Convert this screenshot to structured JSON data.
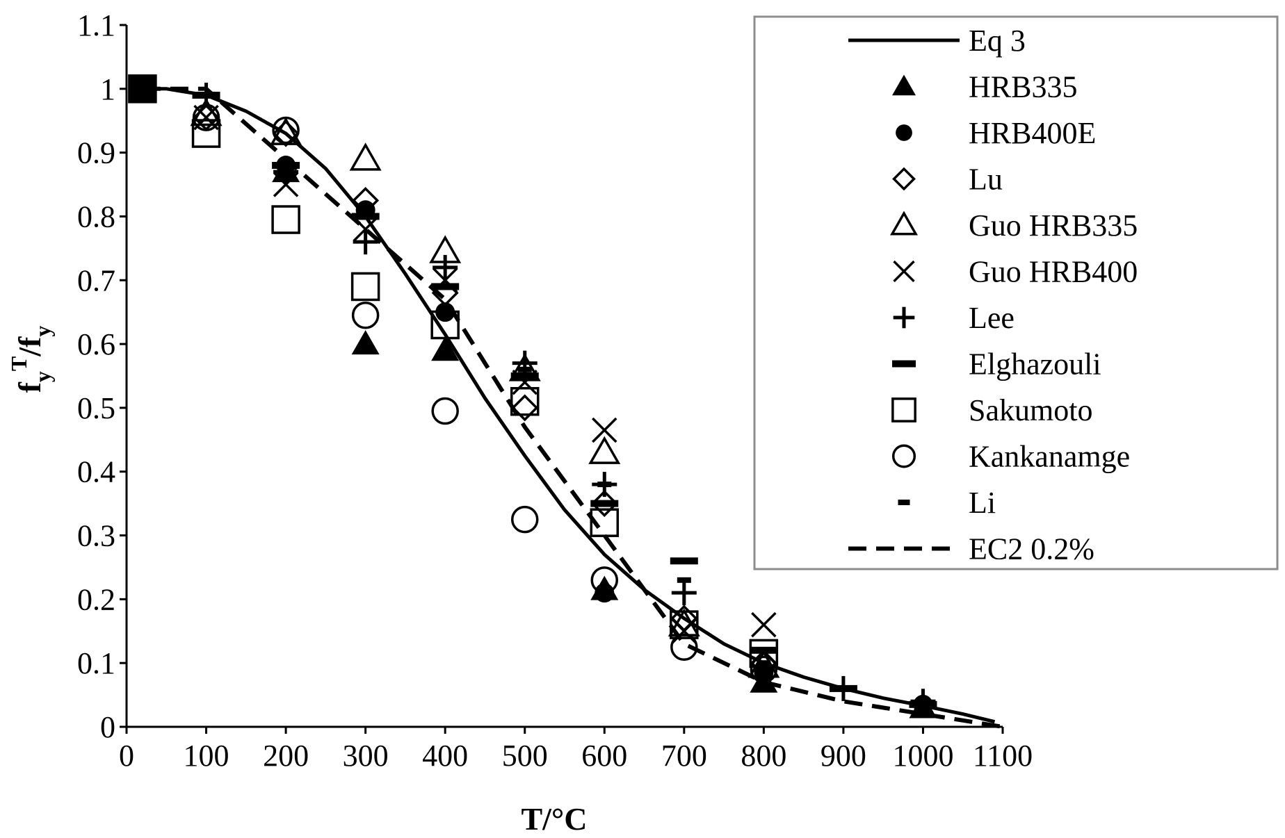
{
  "chart_data": {
    "type": "scatter",
    "title": "",
    "xlabel": "T/°C",
    "ylabel_parts": {
      "main": "f",
      "sub1": "y",
      "sup": "T",
      "slash": "/f",
      "sub2": "y"
    },
    "xlim": [
      0,
      1100
    ],
    "ylim": [
      0,
      1.1
    ],
    "x_ticks": [
      0,
      100,
      200,
      300,
      400,
      500,
      600,
      700,
      800,
      900,
      1000,
      1100
    ],
    "x_tick_labels": [
      "0",
      "100",
      "200",
      "300",
      "400",
      "500",
      "600",
      "700",
      "800",
      "900",
      "1000",
      "1100"
    ],
    "y_ticks": [
      0,
      0.1,
      0.2,
      0.3,
      0.4,
      0.5,
      0.6,
      0.7,
      0.8,
      0.9,
      1,
      1.1
    ],
    "y_tick_labels": [
      "0",
      "0.1",
      "0.2",
      "0.3",
      "0.4",
      "0.5",
      "0.6",
      "0.7",
      "0.8",
      "0.9",
      "1",
      "1.1"
    ],
    "grid": false,
    "legend_position": "top-right",
    "series": [
      {
        "name": "Eq 3",
        "style": "line-solid",
        "x": [
          20,
          50,
          100,
          150,
          200,
          250,
          300,
          350,
          400,
          450,
          500,
          550,
          600,
          650,
          700,
          750,
          800,
          850,
          900,
          950,
          1000,
          1050,
          1090
        ],
        "y": [
          1.0,
          1.0,
          0.99,
          0.965,
          0.93,
          0.875,
          0.8,
          0.71,
          0.615,
          0.515,
          0.425,
          0.34,
          0.27,
          0.215,
          0.17,
          0.13,
          0.1,
          0.078,
          0.06,
          0.045,
          0.033,
          0.02,
          0.008
        ]
      },
      {
        "name": "HRB335",
        "style": "triangle-filled",
        "x": [
          20,
          200,
          300,
          400,
          600,
          800,
          1000
        ],
        "y": [
          1.0,
          0.87,
          0.6,
          0.59,
          0.215,
          0.07,
          0.03
        ]
      },
      {
        "name": "HRB400E",
        "style": "circle-filled",
        "x": [
          20,
          200,
          300,
          400,
          600,
          800,
          1000
        ],
        "y": [
          1.0,
          0.88,
          0.81,
          0.65,
          0.21,
          0.085,
          0.035
        ]
      },
      {
        "name": "Lu",
        "style": "diamond-open",
        "x": [
          100,
          200,
          300,
          400,
          500,
          600,
          700,
          800
        ],
        "y": [
          0.955,
          0.93,
          0.825,
          0.68,
          0.5,
          0.35,
          0.17,
          0.1
        ]
      },
      {
        "name": "Guo HRB335",
        "style": "triangle-open",
        "x": [
          100,
          200,
          300,
          400,
          500,
          600,
          700,
          800
        ],
        "y": [
          0.96,
          0.93,
          0.89,
          0.745,
          0.56,
          0.43,
          0.16,
          0.095
        ]
      },
      {
        "name": "Guo HRB400",
        "style": "x-mark",
        "x": [
          100,
          200,
          300,
          400,
          500,
          600,
          700,
          800
        ],
        "y": [
          0.955,
          0.85,
          0.78,
          0.7,
          0.54,
          0.465,
          0.15,
          0.16
        ]
      },
      {
        "name": "Lee",
        "style": "plus",
        "x": [
          100,
          200,
          300,
          400,
          500,
          600,
          700,
          900,
          1000
        ],
        "y": [
          0.99,
          0.87,
          0.76,
          0.72,
          0.57,
          0.38,
          0.21,
          0.06,
          0.04
        ]
      },
      {
        "name": "Elghazouli",
        "style": "dash-thick",
        "x": [
          20,
          100,
          200,
          300,
          400,
          500,
          600,
          700,
          800,
          900,
          1000
        ],
        "y": [
          1.0,
          0.99,
          0.88,
          0.8,
          0.69,
          0.55,
          0.35,
          0.26,
          0.12,
          0.06,
          0.035
        ]
      },
      {
        "name": "Sakumoto",
        "style": "square-open",
        "x": [
          20,
          100,
          200,
          300,
          400,
          500,
          600,
          700,
          800
        ],
        "y": [
          1.0,
          0.93,
          0.795,
          0.69,
          0.63,
          0.51,
          0.32,
          0.16,
          0.115
        ]
      },
      {
        "name": "Kankanamge",
        "style": "circle-open",
        "x": [
          100,
          200,
          300,
          400,
          500,
          600,
          700,
          800
        ],
        "y": [
          0.955,
          0.935,
          0.645,
          0.495,
          0.325,
          0.23,
          0.125,
          0.09
        ]
      },
      {
        "name": "Li",
        "style": "dash-thin",
        "x": [
          20,
          200,
          300,
          400,
          500,
          600,
          700,
          800,
          900,
          1000
        ],
        "y": [
          1.0,
          0.88,
          0.8,
          0.69,
          0.56,
          0.38,
          0.23,
          0.1,
          0.06,
          0.035
        ]
      },
      {
        "name": "EC2 0.2%",
        "style": "line-dashed",
        "x": [
          20,
          100,
          200,
          300,
          400,
          500,
          600,
          700,
          800,
          900,
          1000,
          1100
        ],
        "y": [
          1.0,
          1.0,
          0.89,
          0.78,
          0.67,
          0.47,
          0.3,
          0.13,
          0.07,
          0.04,
          0.02,
          0.0
        ]
      }
    ]
  }
}
